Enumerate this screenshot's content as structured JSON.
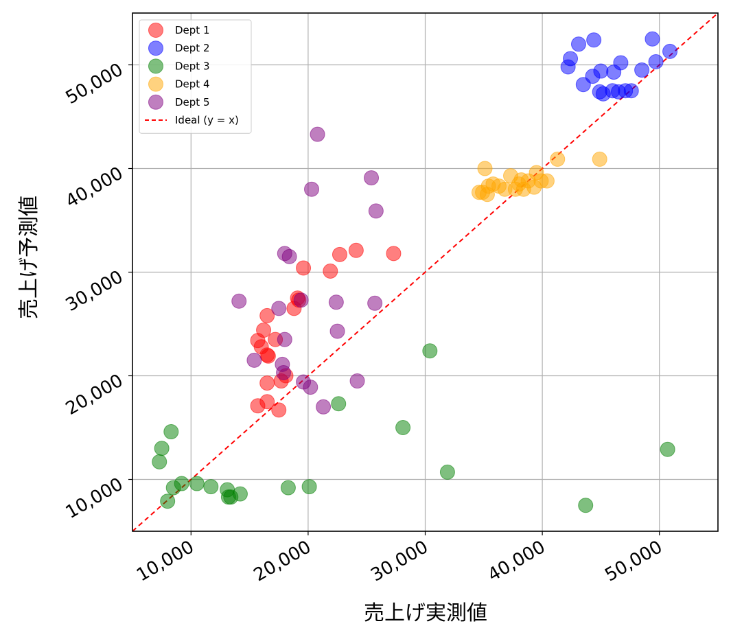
{
  "chart_data": {
    "type": "scatter",
    "title": "",
    "xlabel": "売上げ実測値",
    "ylabel": "売上げ予測値",
    "xlim": [
      5000,
      55000
    ],
    "ylim": [
      5000,
      55000
    ],
    "grid": true,
    "legend_position": "top-left",
    "x_ticks": [
      10000,
      20000,
      30000,
      40000,
      50000
    ],
    "y_ticks": [
      10000,
      20000,
      30000,
      40000,
      50000
    ],
    "x_tick_labels": [
      "10,000",
      "20,000",
      "30,000",
      "40,000",
      "50,000"
    ],
    "y_tick_labels": [
      "10,000",
      "20,000",
      "30,000",
      "40,000",
      "50,000"
    ],
    "series": [
      {
        "name": "Dept 1",
        "color": "#ff0000",
        "points": [
          [
            15700,
            23400
          ],
          [
            16000,
            22800
          ],
          [
            16200,
            24400
          ],
          [
            16500,
            22000
          ],
          [
            16600,
            21900
          ],
          [
            16500,
            25800
          ],
          [
            17200,
            23500
          ],
          [
            16500,
            19300
          ],
          [
            17700,
            19500
          ],
          [
            18100,
            20000
          ],
          [
            16500,
            17500
          ],
          [
            15700,
            17100
          ],
          [
            17500,
            16700
          ],
          [
            18800,
            26500
          ],
          [
            19100,
            27500
          ],
          [
            19200,
            27300
          ],
          [
            19600,
            30400
          ],
          [
            21900,
            30100
          ],
          [
            22700,
            31700
          ],
          [
            24100,
            32100
          ],
          [
            27300,
            31800
          ]
        ]
      },
      {
        "name": "Dept 2",
        "color": "#0000ff",
        "points": [
          [
            42200,
            49800
          ],
          [
            42400,
            50600
          ],
          [
            43100,
            52000
          ],
          [
            44400,
            52400
          ],
          [
            43500,
            48100
          ],
          [
            44300,
            48900
          ],
          [
            45000,
            49400
          ],
          [
            44900,
            47400
          ],
          [
            45200,
            47200
          ],
          [
            46000,
            47500
          ],
          [
            46100,
            49300
          ],
          [
            46500,
            47400
          ],
          [
            46700,
            50200
          ],
          [
            47100,
            47500
          ],
          [
            47600,
            47500
          ],
          [
            48500,
            49500
          ],
          [
            49400,
            52500
          ],
          [
            49700,
            50300
          ],
          [
            50900,
            51300
          ]
        ]
      },
      {
        "name": "Dept 3",
        "color": "#008000",
        "points": [
          [
            7300,
            11700
          ],
          [
            7500,
            13000
          ],
          [
            8000,
            7900
          ],
          [
            8300,
            14600
          ],
          [
            8500,
            9200
          ],
          [
            9200,
            9600
          ],
          [
            10500,
            9600
          ],
          [
            11700,
            9300
          ],
          [
            13100,
            9000
          ],
          [
            13200,
            8300
          ],
          [
            13400,
            8300
          ],
          [
            14200,
            8600
          ],
          [
            18300,
            9200
          ],
          [
            20100,
            9300
          ],
          [
            22600,
            17300
          ],
          [
            28100,
            15000
          ],
          [
            30400,
            22400
          ],
          [
            31900,
            10700
          ],
          [
            43700,
            7500
          ],
          [
            50700,
            12900
          ]
        ]
      },
      {
        "name": "Dept 4",
        "color": "#ffa500",
        "points": [
          [
            34600,
            37700
          ],
          [
            34900,
            37700
          ],
          [
            35100,
            40000
          ],
          [
            35300,
            37500
          ],
          [
            35400,
            38300
          ],
          [
            35800,
            38500
          ],
          [
            36300,
            38300
          ],
          [
            36800,
            38000
          ],
          [
            37300,
            39300
          ],
          [
            37700,
            38000
          ],
          [
            38000,
            38500
          ],
          [
            38200,
            38900
          ],
          [
            38400,
            38000
          ],
          [
            38800,
            38800
          ],
          [
            39300,
            38200
          ],
          [
            39500,
            39600
          ],
          [
            39900,
            38800
          ],
          [
            40400,
            38800
          ],
          [
            41300,
            40900
          ],
          [
            44900,
            40900
          ]
        ]
      },
      {
        "name": "Dept 5",
        "color": "#800080",
        "points": [
          [
            14100,
            27200
          ],
          [
            15400,
            21500
          ],
          [
            17500,
            26500
          ],
          [
            17800,
            21100
          ],
          [
            17900,
            20300
          ],
          [
            18000,
            23500
          ],
          [
            18000,
            31800
          ],
          [
            18400,
            31500
          ],
          [
            19400,
            27300
          ],
          [
            19600,
            19400
          ],
          [
            20200,
            18900
          ],
          [
            20300,
            38000
          ],
          [
            20800,
            43300
          ],
          [
            21300,
            17000
          ],
          [
            22400,
            27100
          ],
          [
            22500,
            24300
          ],
          [
            24200,
            19500
          ],
          [
            25400,
            39100
          ],
          [
            25700,
            27000
          ],
          [
            25800,
            35900
          ]
        ]
      }
    ],
    "reference_line": {
      "name": "Ideal (y = x)",
      "color": "#ff0000",
      "style": "dashed",
      "from": [
        5000,
        5000
      ],
      "to": [
        55000,
        55000
      ]
    }
  }
}
